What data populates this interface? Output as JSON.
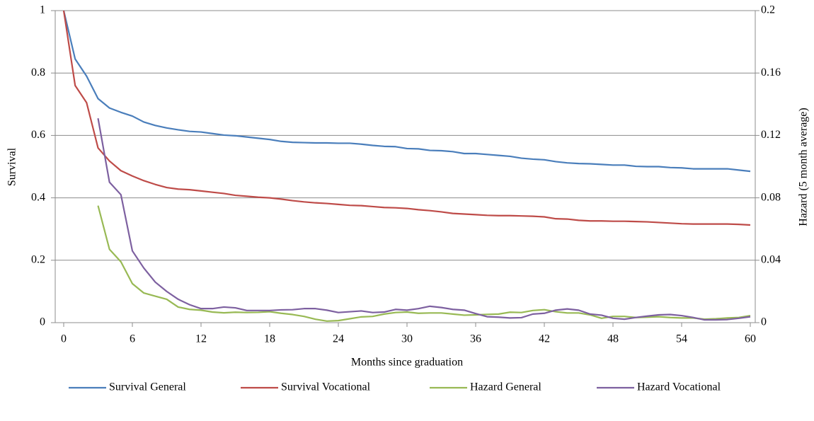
{
  "chart_data": {
    "type": "line",
    "x_label": "Months since graduation",
    "y_label": "Survival",
    "y2_label": "Hazard (5 month average)",
    "x": [
      0,
      1,
      2,
      3,
      4,
      5,
      6,
      7,
      8,
      9,
      10,
      11,
      12,
      13,
      14,
      15,
      16,
      17,
      18,
      19,
      20,
      21,
      22,
      23,
      24,
      25,
      26,
      27,
      28,
      29,
      30,
      31,
      32,
      33,
      34,
      35,
      36,
      37,
      38,
      39,
      40,
      41,
      42,
      43,
      44,
      45,
      46,
      47,
      48,
      49,
      50,
      51,
      52,
      53,
      54,
      55,
      56,
      57,
      58,
      59,
      60
    ],
    "xlim": [
      0,
      60
    ],
    "xticks": [
      0,
      6,
      12,
      18,
      24,
      30,
      36,
      42,
      48,
      54,
      60
    ],
    "ylim": [
      0,
      1
    ],
    "yticks": [
      0,
      0.2,
      0.4,
      0.6,
      0.8,
      1
    ],
    "y2lim": [
      0,
      0.2
    ],
    "y2ticks": [
      0,
      0.04,
      0.08,
      0.12,
      0.16,
      0.2
    ],
    "grid": true,
    "legend": "bottom",
    "series": [
      {
        "name": "Survival General",
        "color": "#4a7ebb",
        "values": [
          1,
          0.845,
          0.79,
          0.718,
          0.688,
          0.674,
          0.662,
          0.643,
          0.632,
          0.624,
          0.618,
          0.613,
          0.611,
          0.606,
          0.601,
          0.599,
          0.595,
          0.591,
          0.587,
          0.581,
          0.578,
          0.577,
          0.576,
          0.576,
          0.575,
          0.575,
          0.572,
          0.568,
          0.565,
          0.564,
          0.558,
          0.557,
          0.552,
          0.551,
          0.548,
          0.542,
          0.542,
          0.539,
          0.536,
          0.533,
          0.527,
          0.524,
          0.522,
          0.516,
          0.512,
          0.51,
          0.509,
          0.507,
          0.505,
          0.505,
          0.501,
          0.5,
          0.5,
          0.497,
          0.496,
          0.493,
          0.493,
          0.493,
          0.493,
          0.489,
          0.485
        ]
      },
      {
        "name": "Survival Vocational",
        "color": "#be4b48",
        "values": [
          1,
          0.76,
          0.705,
          0.56,
          0.518,
          0.487,
          0.47,
          0.455,
          0.443,
          0.433,
          0.428,
          0.426,
          0.422,
          0.418,
          0.414,
          0.408,
          0.405,
          0.402,
          0.4,
          0.396,
          0.391,
          0.387,
          0.384,
          0.382,
          0.379,
          0.376,
          0.375,
          0.372,
          0.369,
          0.368,
          0.366,
          0.362,
          0.359,
          0.355,
          0.35,
          0.348,
          0.346,
          0.344,
          0.343,
          0.343,
          0.342,
          0.341,
          0.339,
          0.333,
          0.332,
          0.328,
          0.326,
          0.326,
          0.325,
          0.325,
          0.324,
          0.323,
          0.321,
          0.319,
          0.317,
          0.316,
          0.316,
          0.316,
          0.316,
          0.315,
          0.313
        ]
      },
      {
        "name": "Hazard General",
        "color": "#98b954",
        "axis": "y2",
        "values": [
          null,
          null,
          null,
          0.075,
          0.047,
          0.039,
          0.025,
          0.019,
          0.017,
          0.015,
          0.01,
          0.0085,
          0.008,
          0.0068,
          0.0063,
          0.0067,
          0.0065,
          0.0066,
          0.007,
          0.006,
          0.0052,
          0.004,
          0.0022,
          0.001,
          0.0013,
          0.0025,
          0.0037,
          0.004,
          0.0055,
          0.0065,
          0.0068,
          0.006,
          0.0062,
          0.0062,
          0.0055,
          0.0048,
          0.005,
          0.0053,
          0.0055,
          0.0067,
          0.0065,
          0.0078,
          0.0083,
          0.007,
          0.0062,
          0.0062,
          0.005,
          0.0028,
          0.004,
          0.004,
          0.0033,
          0.0035,
          0.0038,
          0.0033,
          0.003,
          0.003,
          0.0022,
          0.0025,
          0.003,
          0.0033,
          0.0045
        ]
      },
      {
        "name": "Hazard Vocational",
        "color": "#7d60a0",
        "axis": "y2",
        "values": [
          null,
          null,
          null,
          0.131,
          0.09,
          0.082,
          0.046,
          0.035,
          0.026,
          0.02,
          0.015,
          0.0115,
          0.009,
          0.009,
          0.01,
          0.0095,
          0.0078,
          0.0078,
          0.0078,
          0.0082,
          0.0083,
          0.009,
          0.009,
          0.008,
          0.0065,
          0.007,
          0.0075,
          0.0065,
          0.0068,
          0.0085,
          0.008,
          0.009,
          0.0105,
          0.0097,
          0.0085,
          0.008,
          0.0058,
          0.0038,
          0.0035,
          0.003,
          0.0032,
          0.0055,
          0.006,
          0.008,
          0.0088,
          0.008,
          0.0055,
          0.0048,
          0.0028,
          0.0022,
          0.0033,
          0.0042,
          0.005,
          0.0052,
          0.0045,
          0.0033,
          0.0018,
          0.0018,
          0.002,
          0.0028,
          0.0038
        ]
      }
    ]
  }
}
